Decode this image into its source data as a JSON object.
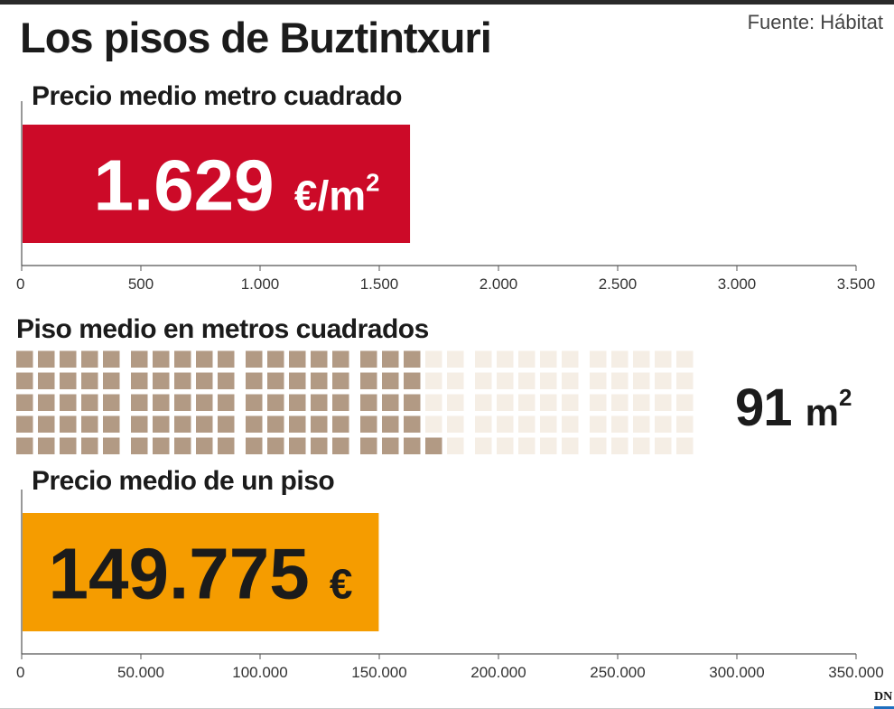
{
  "header": {
    "title": "Los pisos de Buztintxuri",
    "source": "Fuente: Hábitat",
    "logo_text": "DN"
  },
  "colors": {
    "price_bar": "#cc0a28",
    "flat_bar": "#f59c00",
    "waffle_filled": "#b29a84",
    "waffle_empty": "#f5eee5"
  },
  "chart_data": [
    {
      "type": "bar",
      "title": "Precio medio metro cuadrado",
      "categories": [
        ""
      ],
      "values": [
        1629
      ],
      "value_label": "1.629",
      "unit_label": "€/m",
      "unit_superscript": "2",
      "xlim": [
        0,
        3500
      ],
      "ticks": [
        0,
        500,
        1000,
        1500,
        2000,
        2500,
        3000,
        3500
      ],
      "tick_labels": [
        "0",
        "500",
        "1.000",
        "1.500",
        "2.000",
        "2.500",
        "3.000",
        "3.500"
      ]
    },
    {
      "type": "waffle",
      "title": "Piso medio en metros cuadrados",
      "value": 91,
      "total": 150,
      "value_label": "91",
      "unit_label": "m",
      "unit_superscript": "2"
    },
    {
      "type": "bar",
      "title": "Precio medio de un piso",
      "categories": [
        ""
      ],
      "values": [
        149775
      ],
      "value_label": "149.775",
      "unit_label": "€",
      "xlim": [
        0,
        350000
      ],
      "ticks": [
        0,
        50000,
        100000,
        150000,
        200000,
        250000,
        300000,
        350000
      ],
      "tick_labels": [
        "0",
        "50.000",
        "100.000",
        "150.000",
        "200.000",
        "250.000",
        "300.000",
        "350.000"
      ]
    }
  ]
}
